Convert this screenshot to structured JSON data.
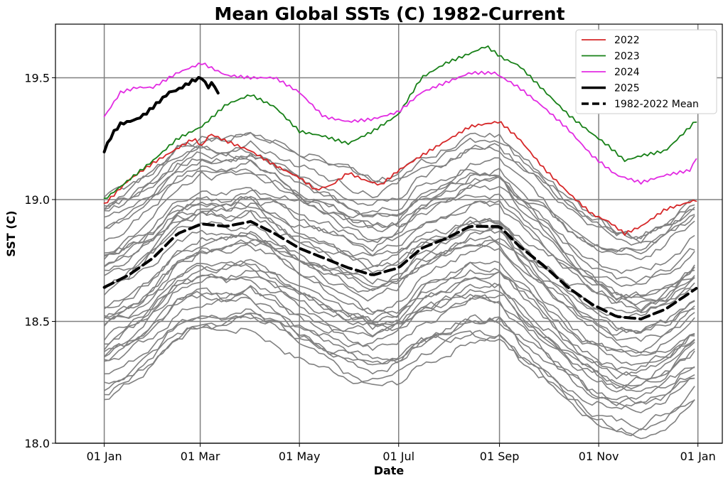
{
  "chart_data": {
    "type": "line",
    "title": "Mean Global SSTs (C) 1982-Current",
    "xlabel": "Date",
    "ylabel": "SST (C)",
    "xlim": [
      -30,
      380
    ],
    "ylim": [
      18.0,
      19.72
    ],
    "grid": true,
    "x_ticks": [
      {
        "day": 0,
        "label": "01 Jan"
      },
      {
        "day": 59,
        "label": "01 Mar"
      },
      {
        "day": 120,
        "label": "01 May"
      },
      {
        "day": 181,
        "label": "01 Jul"
      },
      {
        "day": 243,
        "label": "01 Sep"
      },
      {
        "day": 304,
        "label": "01 Nov"
      },
      {
        "day": 365,
        "label": "01 Jan"
      }
    ],
    "y_ticks": [
      18.0,
      18.5,
      19.0,
      19.5
    ],
    "legend": {
      "position": "top-right",
      "entries": [
        {
          "label": "2022",
          "color": "#d62728",
          "style": "solid"
        },
        {
          "label": "2023",
          "color": "#178017",
          "style": "solid"
        },
        {
          "label": "2024",
          "color": "#e22be2",
          "style": "solid"
        },
        {
          "label": "2025",
          "color": "#000000",
          "style": "solid-thick"
        },
        {
          "label": "1982-2022 Mean",
          "color": "#000000",
          "style": "dashed-thick"
        }
      ]
    },
    "background_series": {
      "color": "#808080",
      "description_count": 40,
      "offset_min": -0.44,
      "offset_max": 0.36
    },
    "series": [
      {
        "name": "1982-2022 Mean",
        "color": "#000000",
        "dash": true,
        "width": 4,
        "x": [
          0,
          15,
          30,
          45,
          60,
          75,
          90,
          105,
          120,
          135,
          150,
          165,
          181,
          195,
          210,
          225,
          243,
          255,
          270,
          285,
          300,
          315,
          330,
          345,
          365
        ],
        "y": [
          18.64,
          18.69,
          18.76,
          18.86,
          18.9,
          18.89,
          18.91,
          18.86,
          18.8,
          18.76,
          18.72,
          18.69,
          18.72,
          18.8,
          18.84,
          18.89,
          18.89,
          18.81,
          18.73,
          18.64,
          18.57,
          18.52,
          18.51,
          18.55,
          18.64
        ]
      },
      {
        "name": "2022",
        "color": "#d62728",
        "dash": false,
        "width": 1.8,
        "x": [
          0,
          15,
          30,
          45,
          55,
          60,
          65,
          75,
          90,
          105,
          120,
          130,
          140,
          150,
          160,
          170,
          181,
          195,
          210,
          225,
          243,
          255,
          270,
          285,
          300,
          310,
          320,
          330,
          345,
          365
        ],
        "y": [
          18.98,
          19.08,
          19.15,
          19.21,
          19.25,
          19.22,
          19.27,
          19.24,
          19.2,
          19.14,
          19.09,
          19.04,
          19.06,
          19.11,
          19.08,
          19.06,
          19.12,
          19.18,
          19.24,
          19.3,
          19.32,
          19.25,
          19.13,
          19.03,
          18.94,
          18.91,
          18.86,
          18.89,
          18.96,
          19.0
        ]
      },
      {
        "name": "2023",
        "color": "#178017",
        "dash": false,
        "width": 1.8,
        "x": [
          0,
          15,
          30,
          45,
          60,
          75,
          90,
          105,
          120,
          135,
          150,
          165,
          181,
          195,
          210,
          225,
          235,
          245,
          255,
          270,
          285,
          300,
          310,
          320,
          330,
          345,
          365
        ],
        "y": [
          19.0,
          19.08,
          19.16,
          19.25,
          19.3,
          19.39,
          19.43,
          19.38,
          19.28,
          19.26,
          19.23,
          19.28,
          19.35,
          19.5,
          19.56,
          19.6,
          19.63,
          19.58,
          19.55,
          19.45,
          19.35,
          19.27,
          19.22,
          19.16,
          19.18,
          19.2,
          19.33
        ]
      },
      {
        "name": "2024",
        "color": "#e22be2",
        "dash": false,
        "width": 1.8,
        "x": [
          0,
          10,
          20,
          30,
          45,
          60,
          75,
          90,
          105,
          120,
          135,
          150,
          165,
          181,
          195,
          210,
          225,
          240,
          255,
          270,
          285,
          300,
          315,
          330,
          345,
          360,
          365
        ],
        "y": [
          19.34,
          19.44,
          19.46,
          19.46,
          19.52,
          19.56,
          19.51,
          19.5,
          19.5,
          19.44,
          19.34,
          19.32,
          19.33,
          19.36,
          19.44,
          19.48,
          19.52,
          19.52,
          19.46,
          19.38,
          19.29,
          19.18,
          19.1,
          19.07,
          19.1,
          19.12,
          19.18
        ]
      },
      {
        "name": "2025",
        "color": "#000000",
        "dash": false,
        "width": 4,
        "x": [
          0,
          5,
          10,
          15,
          20,
          25,
          30,
          35,
          40,
          45,
          50,
          55,
          60,
          64,
          66,
          70
        ],
        "y": [
          19.2,
          19.27,
          19.31,
          19.32,
          19.33,
          19.35,
          19.38,
          19.41,
          19.44,
          19.45,
          19.47,
          19.49,
          19.5,
          19.46,
          19.48,
          19.44
        ]
      }
    ]
  }
}
